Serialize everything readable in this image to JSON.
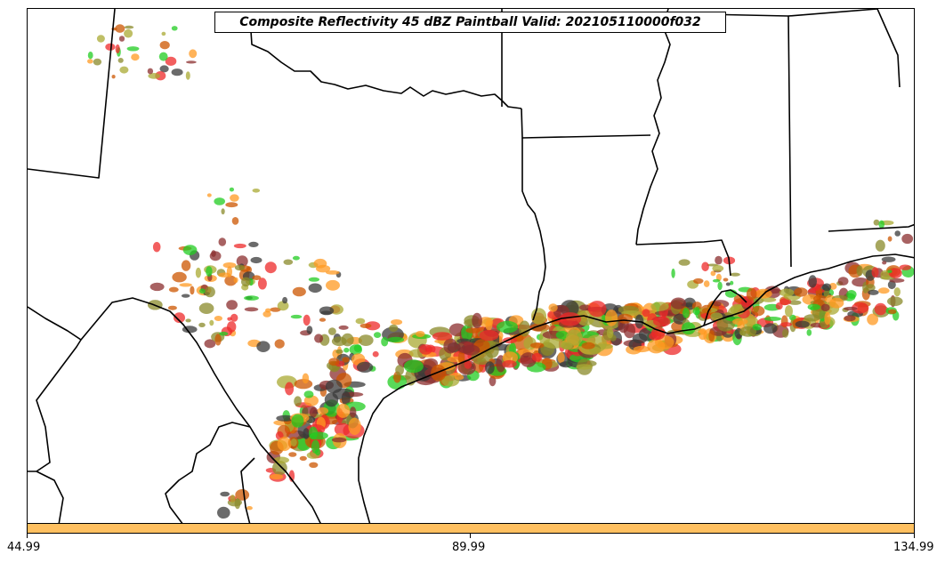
{
  "title": "Composite Reflectivity 45 dBZ Paintball Valid: 202105110000f032",
  "colorbar": {
    "color": "#ffc060",
    "tick_labels": [
      "44.99",
      "89.99",
      "134.99"
    ],
    "values": [
      44.99,
      89.99,
      134.99
    ]
  },
  "member_colors": [
    "#ee2a2a",
    "#22cc22",
    "#ff9922",
    "#8b2e2e",
    "#3a3a3a",
    "#8a8a2a",
    "#aaaa33",
    "#cc5500"
  ]
}
